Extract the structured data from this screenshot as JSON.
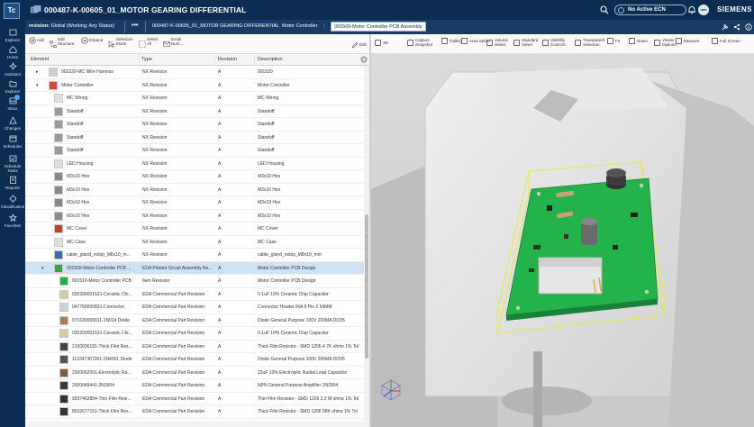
{
  "app": {
    "logo": "Tc",
    "title": "000487-K-00605_01_MOTOR GEARING DIFFERENTIAL",
    "ecn_label": "No Active ECN",
    "avatar": "mm",
    "brand": "SIEMENS"
  },
  "rail": [
    {
      "label": "Explorer",
      "icon": "explorer-icon"
    },
    {
      "label": "Home",
      "icon": "home-icon"
    },
    {
      "label": "Assistant",
      "icon": "assistant-icon"
    },
    {
      "label": "Explorer",
      "icon": "folder-icon"
    },
    {
      "label": "Inbox",
      "icon": "inbox-icon"
    },
    {
      "label": "Changes",
      "icon": "changes-icon"
    },
    {
      "label": "Schedules",
      "icon": "schedules-icon"
    },
    {
      "label": "Schedule Tasks",
      "icon": "schedule-tasks-icon"
    },
    {
      "label": "Reports",
      "icon": "reports-icon"
    },
    {
      "label": "Classification",
      "icon": "classification-icon"
    },
    {
      "label": "Favorites",
      "icon": "favorites-icon"
    }
  ],
  "revbar": {
    "revision_label": "revision:",
    "revision_value": "Global (Working; Any Status)",
    "more": "•••",
    "crumbs": [
      "000487-K-00605_01_MOTOR GEARING DIFFERENTIAL",
      "Motor Controller",
      "001509-Motor Controller PCB Assembly"
    ]
  },
  "left_toolbar": [
    "Add",
    "Edit Structure",
    "Expand",
    "Selection Mode",
    "Select All",
    "Email Num...",
    "Edit"
  ],
  "right_toolbar": [
    "3D",
    "Capture Snapshot",
    "Gallery",
    "Area Select",
    "Volume Select",
    "Standard Views",
    "Visibility Controls",
    "Transparent Selection",
    "Fit",
    "Notes",
    "Viewer Options",
    "Measure",
    "Full Screen"
  ],
  "table": {
    "columns": [
      "Element",
      "Type",
      "Revision",
      "Description"
    ],
    "rows": [
      {
        "element": "001520-MC Wire Harness",
        "type": "NX Revision",
        "revision": "A",
        "description": "001520",
        "level": 1,
        "expander": "▸",
        "thumb": "#cfcfcf"
      },
      {
        "element": "Motor Controller",
        "type": "NX Revision",
        "revision": "A",
        "description": "Motor Controller",
        "level": 1,
        "expander": "▾",
        "thumb": "#d24a3a"
      },
      {
        "element": "MC Wiring",
        "type": "NX Revision",
        "revision": "A",
        "description": "MC Wiring",
        "level": 2,
        "expander": "",
        "thumb": "#e0e0e0"
      },
      {
        "element": "Standoff",
        "type": "NX Revision",
        "revision": "A",
        "description": "Standoff",
        "level": 2,
        "expander": "",
        "thumb": "#9a9a9a"
      },
      {
        "element": "Standoff",
        "type": "NX Revision",
        "revision": "A",
        "description": "Standoff",
        "level": 2,
        "expander": "",
        "thumb": "#9a9a9a"
      },
      {
        "element": "Standoff",
        "type": "NX Revision",
        "revision": "A",
        "description": "Standoff",
        "level": 2,
        "expander": "",
        "thumb": "#9a9a9a"
      },
      {
        "element": "Standoff",
        "type": "NX Revision",
        "revision": "A",
        "description": "Standoff",
        "level": 2,
        "expander": "",
        "thumb": "#9a9a9a"
      },
      {
        "element": "LED Housing",
        "type": "NX Revision",
        "revision": "A",
        "description": "LED Housing",
        "level": 2,
        "expander": "",
        "thumb": "#e0e0e0"
      },
      {
        "element": "M3x10 Hex",
        "type": "NX Revision",
        "revision": "A",
        "description": "M3x10 Hex",
        "level": 2,
        "expander": "",
        "thumb": "#8a8a8a"
      },
      {
        "element": "M3x10 Hex",
        "type": "NX Revision",
        "revision": "A",
        "description": "M3x10 Hex",
        "level": 2,
        "expander": "",
        "thumb": "#8a8a8a"
      },
      {
        "element": "M3x10 Hex",
        "type": "NX Revision",
        "revision": "A",
        "description": "M3x10 Hex",
        "level": 2,
        "expander": "",
        "thumb": "#8a8a8a"
      },
      {
        "element": "M3x10 Hex",
        "type": "NX Revision",
        "revision": "A",
        "description": "M3x10 Hex",
        "level": 2,
        "expander": "",
        "thumb": "#8a8a8a"
      },
      {
        "element": "MC Cover",
        "type": "NX Revision",
        "revision": "A",
        "description": "MC Cover",
        "level": 2,
        "expander": "",
        "thumb": "#c8392f"
      },
      {
        "element": "MC Case",
        "type": "NX Revision",
        "revision": "A",
        "description": "MC Case",
        "level": 2,
        "expander": "",
        "thumb": "#e0e0e0"
      },
      {
        "element": "cable_gland_nobip_M8x10_m...",
        "type": "NX Revision",
        "revision": "A",
        "description": "cable_gland_nobip_M8x10_mm",
        "level": 2,
        "expander": "",
        "thumb": "#2a6fb5"
      },
      {
        "element": "001509-Motor Controller PCB ...",
        "type": "EDA Printed Circuit Assembly Re...",
        "revision": "A",
        "description": "Motor Controller PCB Design",
        "level": 2,
        "expander": "▾",
        "thumb": "#2fa84a",
        "selected": true
      },
      {
        "element": "001510-Motor Controller PCB",
        "type": "Item Revision",
        "revision": "A",
        "description": "Motor Controller PCB Design",
        "level": 3,
        "expander": "",
        "thumb": "#2fa84a"
      },
      {
        "element": "030200001531-Ceramic Chi...",
        "type": "EDA Commercial Part Revision",
        "revision": "A",
        "description": "0.1uF 10% Ceramic Chip Capacitor",
        "level": 3,
        "expander": "",
        "thumb": "#d8c9a8"
      },
      {
        "element": "047760000831-Connector",
        "type": "EDA Commercial Part Revision",
        "revision": "A",
        "description": "Connector Header R/A 6 Pin 2.54MM",
        "level": 3,
        "expander": "",
        "thumb": "#cfcfcf"
      },
      {
        "element": "071630000011-1N914 Diode",
        "type": "EDA Commercial Part Revision",
        "revision": "A",
        "description": "Diode General Purpose 100V 200MA DO35",
        "level": 3,
        "expander": "",
        "thumb": "#b07c4a"
      },
      {
        "element": "030200001531-Ceramic Chi...",
        "type": "EDA Commercial Part Revision",
        "revision": "A",
        "description": "0.1uF 10% Ceramic Chip Capacitor",
        "level": 3,
        "expander": "",
        "thumb": "#d8c9a8"
      },
      {
        "element": "2100036181-Thick Film Res...",
        "type": "EDA Commercial Part Revision",
        "revision": "A",
        "description": "Thick Film Resistor - SMD 1206 4.7K ohms 1% Tol",
        "level": 3,
        "expander": "",
        "thumb": "#444444"
      },
      {
        "element": "113347367261-1N4001 Diode",
        "type": "EDA Commercial Part Revision",
        "revision": "A",
        "description": "Diode General Purpose 100V 200MA DO35",
        "level": 3,
        "expander": "",
        "thumb": "#555555"
      },
      {
        "element": "2000062091-Electrolytic Ra...",
        "type": "EDA Commercial Part Revision",
        "revision": "A",
        "description": "22uF 10% Electrolytic Radial Lead Capacitor",
        "level": 3,
        "expander": "",
        "thumb": "#7a5a3a"
      },
      {
        "element": "2000049441-2N3904",
        "type": "EDA Commercial Part Revision",
        "revision": "A",
        "description": "NPN General Purpose Amplifier 2N3904",
        "level": 3,
        "expander": "",
        "thumb": "#3a3a3a"
      },
      {
        "element": "9937462854-Thin Film Resi...",
        "type": "EDA Commercial Part Revision",
        "revision": "A",
        "description": "Thin Film Resistor - SMD 1206 2.2 M ohms 1% Tol",
        "level": 3,
        "expander": "",
        "thumb": "#333333"
      },
      {
        "element": "8532677151-Thick Film Res...",
        "type": "EDA Commercial Part Revision",
        "revision": "A",
        "description": "Thick Film Resistor - SMD 1206 68K ohms 1% Tol",
        "level": 3,
        "expander": "",
        "thumb": "#333333"
      }
    ]
  },
  "colors": {
    "header": "#0c2d52",
    "subheader": "#173b63",
    "selection": "#cfe2f3",
    "pcb": "#24b34a",
    "bbox": "#e8e84a"
  }
}
